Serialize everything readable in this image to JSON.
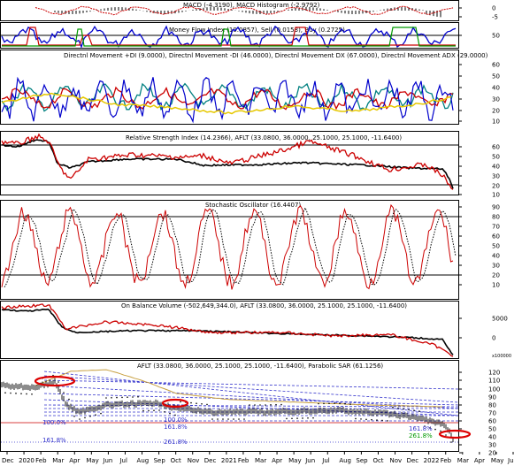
{
  "chart_data": [
    {
      "type": "line",
      "title": "MACD (-4.3190), MACD Histogram (-2.9792)",
      "y_ticks": [
        "0",
        "-5"
      ],
      "colors": {
        "histogram": "#000000",
        "signal": "#cc0000"
      }
    },
    {
      "type": "line",
      "title": "Money Flow Index (19.0857), Sell (0.0153), Buy (0.2725)",
      "y_ticks": [
        "50"
      ],
      "series": [
        {
          "name": "Money Flow Index",
          "color": "#0000cc"
        },
        {
          "name": "Sell",
          "color": "#cc0000"
        },
        {
          "name": "Buy",
          "color": "#009900"
        }
      ]
    },
    {
      "type": "line",
      "title": "Directnl Movement +DI (9.0000), Directnl Movement -DI (46.0000), Directnl Movement DX (67.0000), Directnl Movement ADX (29.0000)",
      "y_ticks": [
        "60",
        "50",
        "40",
        "30",
        "20",
        "10"
      ],
      "series": [
        {
          "name": "+DI",
          "color": "#008080"
        },
        {
          "name": "-DI",
          "color": "#cc0000"
        },
        {
          "name": "DX",
          "color": "#0000cc"
        },
        {
          "name": "ADX",
          "color": "#e6c800"
        }
      ]
    },
    {
      "type": "line",
      "title": "Relative Strength Index (14.2366), AFLT (33.0800, 36.0000, 25.1000, 25.1000, -11.6400)",
      "y_ticks": [
        "60",
        "50",
        "40",
        "30",
        "20",
        "10"
      ],
      "reference_lines": [
        68,
        20
      ],
      "series": [
        {
          "name": "Relative Strength Index",
          "color": "#cc0000"
        },
        {
          "name": "AFLT",
          "color": "#000000"
        }
      ]
    },
    {
      "type": "line",
      "title": "Stochastic Oscillator (16.4407)",
      "y_ticks": [
        "90",
        "80",
        "70",
        "60",
        "50",
        "40",
        "30",
        "20",
        "10"
      ],
      "reference_lines": [
        80,
        20
      ],
      "series": [
        {
          "name": "%K",
          "color": "#cc0000"
        },
        {
          "name": "%D",
          "color": "#000000",
          "dashed": true
        }
      ]
    },
    {
      "type": "line",
      "title": "On Balance Volume (-502,649,344.0), AFLT (33.0800, 36.0000, 25.1000, 25.1000, -11.6400)",
      "y_ticks": [
        "5000",
        "0"
      ],
      "scale_label": "x100000",
      "series": [
        {
          "name": "On Balance Volume",
          "color": "#cc0000"
        },
        {
          "name": "AFLT",
          "color": "#000000"
        }
      ]
    },
    {
      "type": "line",
      "title": "AFLT (33.0800, 36.0000, 25.1000, 25.1000, -11.6400), Parabolic SAR (61.1256)",
      "y_ticks": [
        "120",
        "110",
        "100",
        "90",
        "80",
        "70",
        "60",
        "50",
        "40",
        "30",
        "20"
      ],
      "fib_labels": [
        "100.0%",
        "161.8%",
        "100.0%",
        "161.8%",
        "261.8%",
        "161.8%",
        "261.8%"
      ],
      "x_labels": [
        "Dec",
        "2020",
        "Feb",
        "Mar",
        "Apr",
        "May",
        "Jun",
        "Jul",
        "Aug",
        "Sep",
        "Oct",
        "Nov",
        "Dec",
        "2021",
        "Feb",
        "Mar",
        "Apr",
        "May",
        "Jun",
        "Jul",
        "Aug",
        "Sep",
        "Oct",
        "Nov",
        "Dec",
        "2022",
        "Feb",
        "Mar",
        "Apr",
        "May",
        "Ju"
      ],
      "series": [
        {
          "name": "AFLT",
          "color": "#000000"
        },
        {
          "name": "Parabolic SAR",
          "color": "#000000"
        }
      ]
    }
  ]
}
